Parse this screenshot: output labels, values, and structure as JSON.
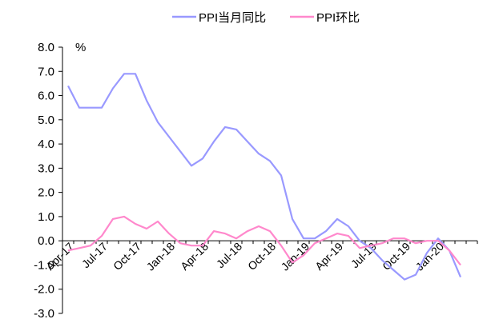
{
  "chart_data": {
    "type": "line",
    "title": "",
    "ylabel": "%",
    "xlabel": "",
    "ylim": [
      -3.0,
      8.0
    ],
    "y_ticks": [
      "8.0",
      "7.0",
      "6.0",
      "5.0",
      "4.0",
      "3.0",
      "2.0",
      "1.0",
      "0.0",
      "-1.0",
      "-2.0",
      "-3.0"
    ],
    "x_tick_labels": [
      "Apr-17",
      "Jul-17",
      "Oct-17",
      "Jan-18",
      "Apr-18",
      "Jul-18",
      "Oct-18",
      "Jan-19",
      "Apr-19",
      "Jul-19",
      "Oct-19",
      "Jan-20"
    ],
    "legend_position": "top",
    "categories": [
      "2017-04",
      "2017-05",
      "2017-06",
      "2017-07",
      "2017-08",
      "2017-09",
      "2017-10",
      "2017-11",
      "2017-12",
      "2018-01",
      "2018-02",
      "2018-03",
      "2018-04",
      "2018-05",
      "2018-06",
      "2018-07",
      "2018-08",
      "2018-09",
      "2018-10",
      "2018-11",
      "2018-12",
      "2019-01",
      "2019-02",
      "2019-03",
      "2019-04",
      "2019-05",
      "2019-06",
      "2019-07",
      "2019-08",
      "2019-09",
      "2019-10",
      "2019-11",
      "2019-12",
      "2020-01",
      "2020-02",
      "2020-03",
      "2020-04"
    ],
    "series": [
      {
        "name": "PPI当月同比",
        "color": "#9999ff",
        "values": [
          6.4,
          5.5,
          5.5,
          5.5,
          6.3,
          6.9,
          6.9,
          5.8,
          4.9,
          4.3,
          3.7,
          3.1,
          3.4,
          4.1,
          4.7,
          4.6,
          4.1,
          3.6,
          3.3,
          2.7,
          0.9,
          0.1,
          0.1,
          0.4,
          0.9,
          0.6,
          0.0,
          -0.3,
          -0.8,
          -1.2,
          -1.6,
          -1.4,
          -0.5,
          0.1,
          -0.4,
          -1.5,
          null
        ]
      },
      {
        "name": "PPI环比",
        "color": "#ff88cc",
        "values": [
          -0.4,
          -0.3,
          -0.2,
          0.2,
          0.9,
          1.0,
          0.7,
          0.5,
          0.8,
          0.3,
          -0.1,
          -0.2,
          -0.2,
          0.4,
          0.3,
          0.1,
          0.4,
          0.6,
          0.4,
          -0.2,
          -0.9,
          -0.6,
          -0.1,
          0.1,
          0.3,
          0.2,
          -0.3,
          -0.2,
          -0.1,
          0.1,
          0.1,
          -0.1,
          0.0,
          0.0,
          -0.4,
          -1.0,
          null
        ]
      }
    ]
  }
}
